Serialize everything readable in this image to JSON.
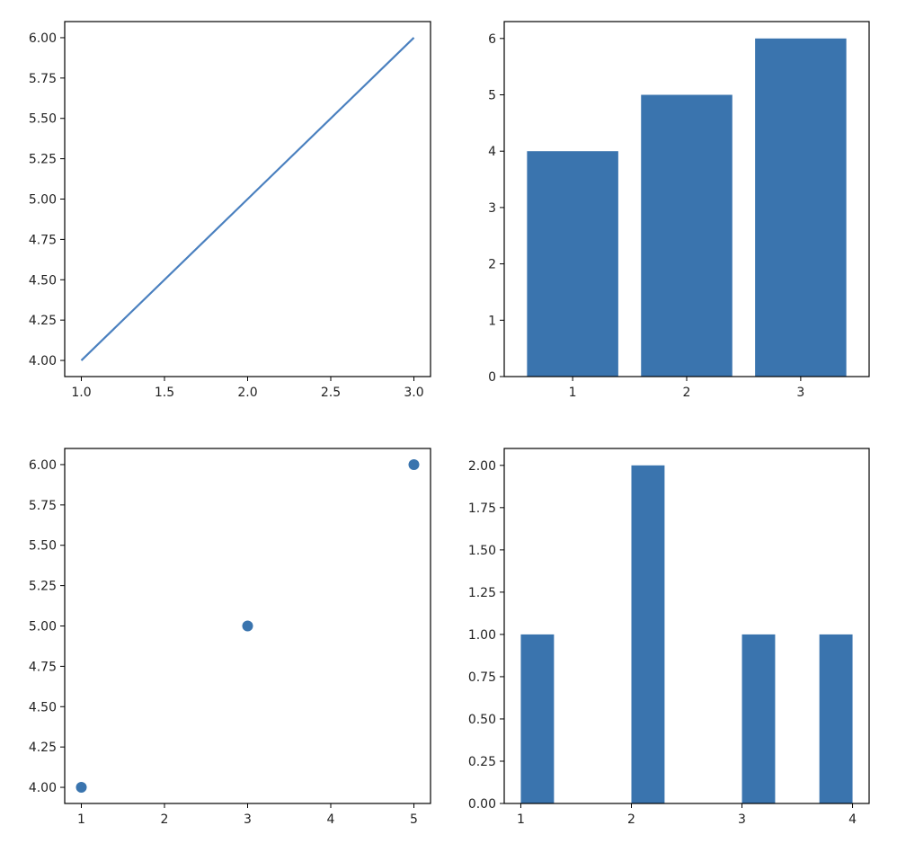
{
  "figure": {
    "layout": "2x2 grid of subplots",
    "background": "#ffffff",
    "series_color": "#3a74ae"
  },
  "chart_data": [
    {
      "type": "line",
      "x": [
        1,
        2,
        3
      ],
      "y": [
        4,
        5,
        6
      ],
      "xlim": [
        0.9,
        3.1
      ],
      "ylim": [
        3.9,
        6.1
      ],
      "xticks": [
        1.0,
        1.5,
        2.0,
        2.5,
        3.0
      ],
      "xtick_labels": [
        "1.0",
        "1.5",
        "2.0",
        "2.5",
        "3.0"
      ],
      "yticks": [
        4.0,
        4.25,
        4.5,
        4.75,
        5.0,
        5.25,
        5.5,
        5.75,
        6.0
      ],
      "ytick_labels": [
        "4.00",
        "4.25",
        "4.50",
        "4.75",
        "5.00",
        "5.25",
        "5.50",
        "5.75",
        "6.00"
      ],
      "color": "#4a80bf",
      "title": "",
      "xlabel": "",
      "ylabel": "",
      "grid": false
    },
    {
      "type": "bar",
      "categories": [
        1,
        2,
        3
      ],
      "values": [
        4,
        5,
        6
      ],
      "bar_width": 0.8,
      "xlim": [
        0.4,
        3.6
      ],
      "ylim": [
        0,
        6.3
      ],
      "xticks": [
        1,
        2,
        3
      ],
      "xtick_labels": [
        "1",
        "2",
        "3"
      ],
      "yticks": [
        0,
        1,
        2,
        3,
        4,
        5,
        6
      ],
      "ytick_labels": [
        "0",
        "1",
        "2",
        "3",
        "4",
        "5",
        "6"
      ],
      "color": "#3a74ae",
      "title": "",
      "xlabel": "",
      "ylabel": "",
      "grid": false
    },
    {
      "type": "scatter",
      "x": [
        1,
        3,
        5
      ],
      "y": [
        4,
        5,
        6
      ],
      "xlim": [
        0.8,
        5.2
      ],
      "ylim": [
        3.9,
        6.1
      ],
      "xticks": [
        1,
        2,
        3,
        4,
        5
      ],
      "xtick_labels": [
        "1",
        "2",
        "3",
        "4",
        "5"
      ],
      "yticks": [
        4.0,
        4.25,
        4.5,
        4.75,
        5.0,
        5.25,
        5.5,
        5.75,
        6.0
      ],
      "ytick_labels": [
        "4.00",
        "4.25",
        "4.50",
        "4.75",
        "5.00",
        "5.25",
        "5.50",
        "5.75",
        "6.00"
      ],
      "color": "#3a74ae",
      "title": "",
      "xlabel": "",
      "ylabel": "",
      "grid": false
    },
    {
      "type": "bar",
      "subtype": "histogram",
      "bins": [
        {
          "start": 1.0,
          "end": 1.3,
          "count": 1
        },
        {
          "start": 2.0,
          "end": 2.3,
          "count": 2
        },
        {
          "start": 3.0,
          "end": 3.3,
          "count": 1
        },
        {
          "start": 3.7,
          "end": 4.0,
          "count": 1
        }
      ],
      "xlim": [
        0.85,
        4.15
      ],
      "ylim": [
        0,
        2.1
      ],
      "xticks": [
        1,
        2,
        3,
        4
      ],
      "xtick_labels": [
        "1",
        "2",
        "3",
        "4"
      ],
      "yticks": [
        0,
        0.25,
        0.5,
        0.75,
        1.0,
        1.25,
        1.5,
        1.75,
        2.0
      ],
      "ytick_labels": [
        "0.00",
        "0.25",
        "0.50",
        "0.75",
        "1.00",
        "1.25",
        "1.50",
        "1.75",
        "2.00"
      ],
      "color": "#3a74ae",
      "title": "",
      "xlabel": "",
      "ylabel": "",
      "grid": false
    }
  ]
}
